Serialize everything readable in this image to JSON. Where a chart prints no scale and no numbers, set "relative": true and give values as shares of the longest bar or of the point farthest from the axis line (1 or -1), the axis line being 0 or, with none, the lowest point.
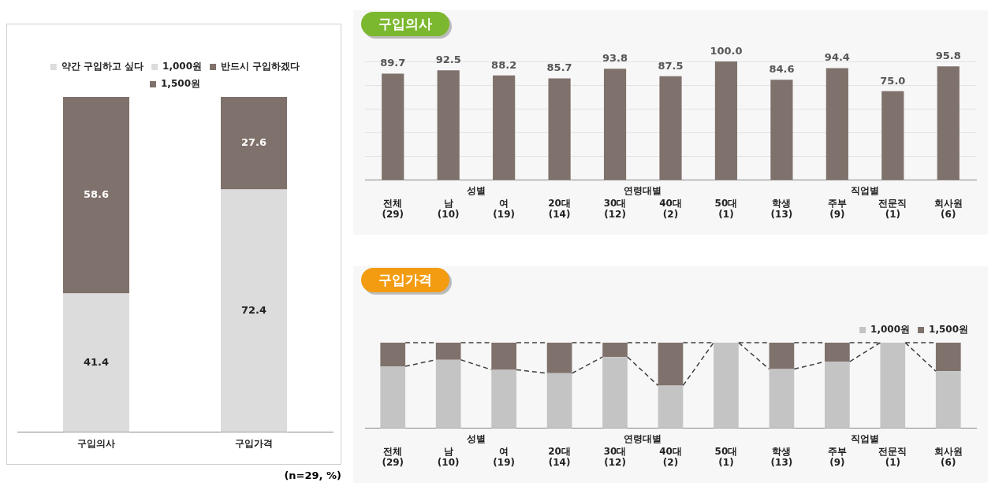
{
  "chart_data": [
    {
      "type": "bar",
      "categories": [
        "구입의사",
        "구입가격"
      ],
      "stacked": true,
      "data_labels": true,
      "legend": "top",
      "tick_labels": "x",
      "ylim": [
        0,
        100
      ],
      "annotations": [
        "(n=29, %)"
      ],
      "series": [
        {
          "name": "약간 구입하고 싶다",
          "color": "#dcdcdc",
          "values": [
            41.4,
            null
          ]
        },
        {
          "name": "1,000원",
          "color": "#dcdcdc",
          "values": [
            null,
            72.4
          ]
        },
        {
          "name": "반드시 구입하겠다",
          "color": "#7f716b",
          "values": [
            58.6,
            null
          ]
        },
        {
          "name": "1,500원",
          "color": "#7f716b",
          "values": [
            null,
            27.6
          ]
        }
      ]
    },
    {
      "type": "bar",
      "title": "구입의사",
      "categories": [
        "전체\n(29)",
        "남\n(10)",
        "여\n(19)",
        "20대\n(14)",
        "30대\n(12)",
        "40대\n(2)",
        "50대\n(1)",
        "학생\n(13)",
        "주부\n(9)",
        "전문직\n(1)",
        "회사원\n(6)"
      ],
      "grid": "y",
      "tick_labels": "x",
      "ylim": [
        0,
        100
      ],
      "yticks": [
        {
          "value": 0,
          "label": null
        },
        {
          "value": 20,
          "label": null
        },
        {
          "value": 40,
          "label": null
        },
        {
          "value": 60,
          "label": null
        },
        {
          "value": 80,
          "label": null
        },
        {
          "value": 100,
          "label": null
        }
      ],
      "annotations": [
        "성별",
        "연령대별",
        "직업별"
      ],
      "color": "#7f716b",
      "values": [
        89.7,
        92.5,
        88.2,
        85.7,
        93.8,
        87.5,
        100.0,
        84.6,
        94.4,
        75.0,
        95.8
      ],
      "value_labels": [
        "89.7",
        "92.5",
        "88.2",
        "85.7",
        "93.8",
        "87.5",
        "100.0",
        "84.6",
        "94.4",
        "75.0",
        "95.8"
      ]
    },
    {
      "type": "bar",
      "title": "구입가격",
      "categories": [
        "전체\n(29)",
        "남\n(10)",
        "여\n(19)",
        "20대\n(14)",
        "30대\n(12)",
        "40대\n(2)",
        "50대\n(1)",
        "학생\n(13)",
        "주부\n(9)",
        "전문직\n(1)",
        "회사원\n(6)"
      ],
      "relative": true,
      "stacked": true,
      "legend": "top right",
      "annotations": [
        "성별",
        "연령대별",
        "직업별"
      ],
      "line_style": "dashed",
      "series": [
        {
          "name": "1,000원",
          "color": "#c4c4c4",
          "values": [
            0.724,
            0.8,
            0.684,
            0.643,
            0.833,
            0.5,
            1,
            0.692,
            0.778,
            1,
            0.667
          ]
        },
        {
          "name": "1,500원",
          "color": "#7f716b",
          "values": [
            0.276,
            0.2,
            0.316,
            0.357,
            0.167,
            0.5,
            0,
            0.308,
            0.222,
            0,
            0.333
          ]
        }
      ]
    }
  ]
}
